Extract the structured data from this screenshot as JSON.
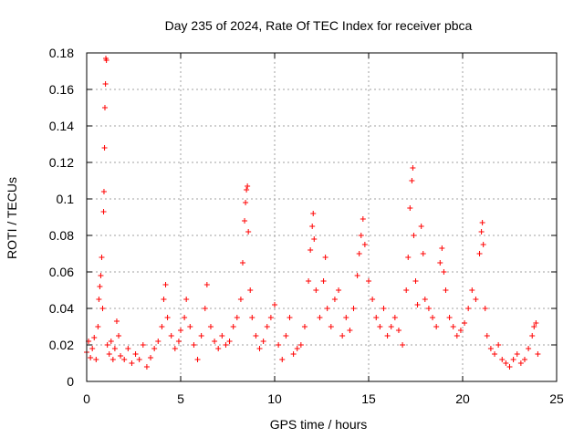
{
  "chart_data": {
    "type": "scatter",
    "title": "Day 235 of 2024, Rate Of TEC Index for receiver pbca",
    "xlabel": "GPS time / hours",
    "ylabel": "ROTI / TECUs",
    "xlim": [
      0,
      25
    ],
    "ylim": [
      0,
      0.18
    ],
    "xticks": [
      "0",
      "5",
      "10",
      "15",
      "20",
      "25"
    ],
    "yticks": [
      "0",
      "0.02",
      "0.04",
      "0.06",
      "0.08",
      "0.1",
      "0.12",
      "0.14",
      "0.16",
      "0.18"
    ],
    "grid": true,
    "marker": "plus",
    "color": "#ff0000",
    "series": [
      {
        "points": [
          [
            0.0,
            0.016
          ],
          [
            0.1,
            0.022
          ],
          [
            0.2,
            0.013
          ],
          [
            0.3,
            0.018
          ],
          [
            0.4,
            0.024
          ],
          [
            0.5,
            0.012
          ],
          [
            0.6,
            0.03
          ],
          [
            0.65,
            0.045
          ],
          [
            0.7,
            0.052
          ],
          [
            0.75,
            0.058
          ],
          [
            0.8,
            0.068
          ],
          [
            0.85,
            0.04
          ],
          [
            0.9,
            0.093
          ],
          [
            0.92,
            0.104
          ],
          [
            0.95,
            0.128
          ],
          [
            0.97,
            0.15
          ],
          [
            1.0,
            0.163
          ],
          [
            1.02,
            0.177
          ],
          [
            1.05,
            0.176
          ],
          [
            1.1,
            0.02
          ],
          [
            1.2,
            0.015
          ],
          [
            1.3,
            0.022
          ],
          [
            1.4,
            0.012
          ],
          [
            1.5,
            0.018
          ],
          [
            1.6,
            0.033
          ],
          [
            1.7,
            0.025
          ],
          [
            1.8,
            0.014
          ],
          [
            2.0,
            0.012
          ],
          [
            2.2,
            0.018
          ],
          [
            2.4,
            0.01
          ],
          [
            2.6,
            0.015
          ],
          [
            2.8,
            0.012
          ],
          [
            3.0,
            0.02
          ],
          [
            3.2,
            0.008
          ],
          [
            3.4,
            0.013
          ],
          [
            3.6,
            0.018
          ],
          [
            3.8,
            0.022
          ],
          [
            4.0,
            0.03
          ],
          [
            4.1,
            0.045
          ],
          [
            4.2,
            0.053
          ],
          [
            4.3,
            0.035
          ],
          [
            4.5,
            0.025
          ],
          [
            4.7,
            0.018
          ],
          [
            4.9,
            0.022
          ],
          [
            5.0,
            0.028
          ],
          [
            5.2,
            0.035
          ],
          [
            5.3,
            0.045
          ],
          [
            5.5,
            0.03
          ],
          [
            5.7,
            0.02
          ],
          [
            5.9,
            0.012
          ],
          [
            6.1,
            0.025
          ],
          [
            6.3,
            0.04
          ],
          [
            6.4,
            0.053
          ],
          [
            6.6,
            0.03
          ],
          [
            6.8,
            0.022
          ],
          [
            7.0,
            0.018
          ],
          [
            7.2,
            0.025
          ],
          [
            7.4,
            0.02
          ],
          [
            7.6,
            0.022
          ],
          [
            7.8,
            0.03
          ],
          [
            8.0,
            0.035
          ],
          [
            8.2,
            0.045
          ],
          [
            8.3,
            0.065
          ],
          [
            8.4,
            0.088
          ],
          [
            8.45,
            0.098
          ],
          [
            8.5,
            0.105
          ],
          [
            8.55,
            0.107
          ],
          [
            8.6,
            0.082
          ],
          [
            8.7,
            0.05
          ],
          [
            8.8,
            0.035
          ],
          [
            9.0,
            0.025
          ],
          [
            9.2,
            0.018
          ],
          [
            9.4,
            0.022
          ],
          [
            9.6,
            0.03
          ],
          [
            9.8,
            0.035
          ],
          [
            10.0,
            0.042
          ],
          [
            10.2,
            0.02
          ],
          [
            10.4,
            0.012
          ],
          [
            10.6,
            0.025
          ],
          [
            10.8,
            0.035
          ],
          [
            11.0,
            0.015
          ],
          [
            11.2,
            0.018
          ],
          [
            11.4,
            0.02
          ],
          [
            11.6,
            0.03
          ],
          [
            11.8,
            0.055
          ],
          [
            11.9,
            0.072
          ],
          [
            12.0,
            0.085
          ],
          [
            12.05,
            0.092
          ],
          [
            12.1,
            0.078
          ],
          [
            12.2,
            0.05
          ],
          [
            12.4,
            0.035
          ],
          [
            12.6,
            0.055
          ],
          [
            12.7,
            0.068
          ],
          [
            12.8,
            0.04
          ],
          [
            13.0,
            0.03
          ],
          [
            13.2,
            0.045
          ],
          [
            13.4,
            0.05
          ],
          [
            13.6,
            0.025
          ],
          [
            13.8,
            0.035
          ],
          [
            14.0,
            0.028
          ],
          [
            14.2,
            0.04
          ],
          [
            14.4,
            0.058
          ],
          [
            14.5,
            0.07
          ],
          [
            14.6,
            0.08
          ],
          [
            14.7,
            0.089
          ],
          [
            14.8,
            0.075
          ],
          [
            15.0,
            0.055
          ],
          [
            15.2,
            0.045
          ],
          [
            15.4,
            0.035
          ],
          [
            15.6,
            0.03
          ],
          [
            15.8,
            0.04
          ],
          [
            16.0,
            0.025
          ],
          [
            16.2,
            0.03
          ],
          [
            16.4,
            0.035
          ],
          [
            16.6,
            0.028
          ],
          [
            16.8,
            0.02
          ],
          [
            17.0,
            0.05
          ],
          [
            17.1,
            0.068
          ],
          [
            17.2,
            0.095
          ],
          [
            17.3,
            0.11
          ],
          [
            17.35,
            0.117
          ],
          [
            17.4,
            0.08
          ],
          [
            17.5,
            0.055
          ],
          [
            17.6,
            0.042
          ],
          [
            17.8,
            0.085
          ],
          [
            17.9,
            0.07
          ],
          [
            18.0,
            0.045
          ],
          [
            18.2,
            0.04
          ],
          [
            18.4,
            0.035
          ],
          [
            18.6,
            0.03
          ],
          [
            18.8,
            0.065
          ],
          [
            18.9,
            0.073
          ],
          [
            19.0,
            0.06
          ],
          [
            19.1,
            0.05
          ],
          [
            19.3,
            0.035
          ],
          [
            19.5,
            0.03
          ],
          [
            19.7,
            0.025
          ],
          [
            19.9,
            0.028
          ],
          [
            20.1,
            0.032
          ],
          [
            20.3,
            0.04
          ],
          [
            20.5,
            0.05
          ],
          [
            20.7,
            0.045
          ],
          [
            20.9,
            0.07
          ],
          [
            21.0,
            0.082
          ],
          [
            21.05,
            0.087
          ],
          [
            21.1,
            0.075
          ],
          [
            21.2,
            0.04
          ],
          [
            21.3,
            0.025
          ],
          [
            21.5,
            0.018
          ],
          [
            21.7,
            0.015
          ],
          [
            21.9,
            0.02
          ],
          [
            22.1,
            0.012
          ],
          [
            22.3,
            0.01
          ],
          [
            22.5,
            0.008
          ],
          [
            22.7,
            0.012
          ],
          [
            22.9,
            0.015
          ],
          [
            23.1,
            0.01
          ],
          [
            23.3,
            0.012
          ],
          [
            23.5,
            0.018
          ],
          [
            23.7,
            0.025
          ],
          [
            23.8,
            0.03
          ],
          [
            23.9,
            0.032
          ],
          [
            24.0,
            0.015
          ]
        ]
      }
    ]
  }
}
